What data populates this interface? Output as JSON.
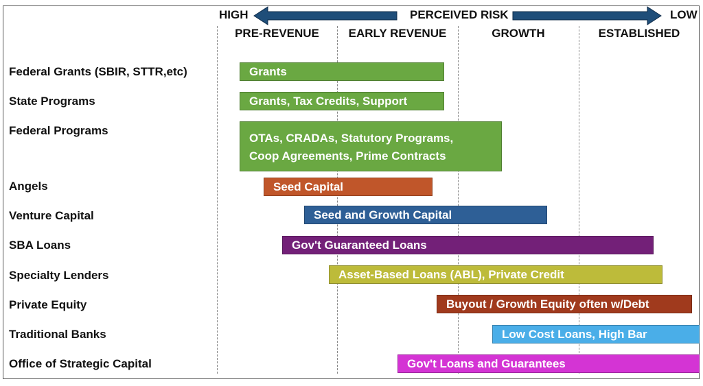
{
  "header": {
    "high": "HIGH",
    "low": "LOW",
    "perceived_risk": "PERCEIVED RISK",
    "arrow_color": "#1f4e79"
  },
  "phases": [
    "PRE-REVENUE",
    "EARLY REVENUE",
    "GROWTH",
    "ESTABLISHED"
  ],
  "rows": [
    {
      "label": "Federal Grants (SBIR, STTR,etc)",
      "bar": [
        "Grants"
      ],
      "color": "#6aa842"
    },
    {
      "label": "State Programs",
      "bar": [
        "Grants, Tax Credits, Support"
      ],
      "color": "#6aa842"
    },
    {
      "label": "Federal  Programs",
      "bar": [
        "OTAs, CRADAs, Statutory Programs,",
        "Coop Agreements, Prime Contracts"
      ],
      "color": "#6aa842"
    },
    {
      "label": "Angels",
      "bar": [
        "Seed Capital"
      ],
      "color": "#c0562a"
    },
    {
      "label": "Venture Capital",
      "bar": [
        "Seed and Growth Capital"
      ],
      "color": "#2e5f96"
    },
    {
      "label": "SBA Loans",
      "bar": [
        "Gov't Guaranteed Loans"
      ],
      "color": "#732078"
    },
    {
      "label": "Specialty Lenders",
      "bar": [
        "Asset-Based Loans (ABL), Private Credit"
      ],
      "color": "#bdbb3a"
    },
    {
      "label": "Private Equity",
      "bar": [
        "Buyout / Growth Equity often w/Debt"
      ],
      "color": "#a03a1d"
    },
    {
      "label": "Traditional Banks",
      "bar": [
        "Low Cost Loans, High Bar"
      ],
      "color": "#4aaee8"
    },
    {
      "label": "Office of Strategic Capital",
      "bar": [
        "Gov't Loans and Guarantees"
      ],
      "color": "#d434d4"
    }
  ]
}
